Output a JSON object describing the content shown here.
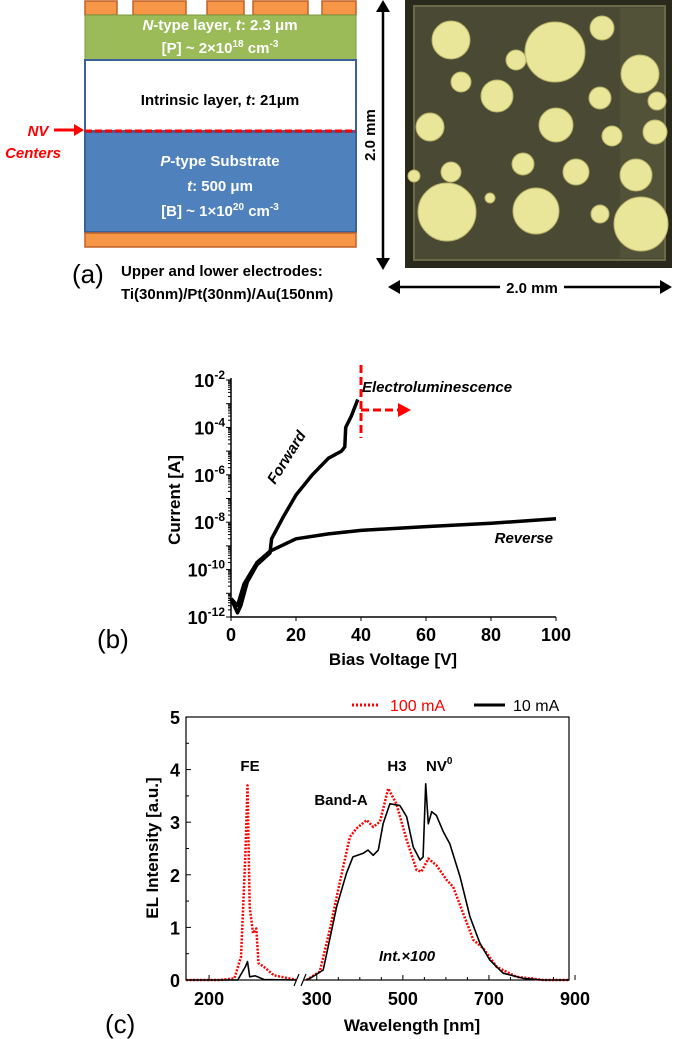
{
  "panel_a": {
    "label": "(a)",
    "n_layer": {
      "line1_italic": "N",
      "line1": "-type layer, ",
      "line1_t": "t",
      "line1_rest": ": 2.3 μm",
      "line2": "[P] ~ 2×10",
      "line2_sup": "18",
      "line2_unit": " cm",
      "line2_unit_sup": "-3"
    },
    "intrinsic_layer": {
      "text": "Intrinsic layer, ",
      "t": "t",
      "rest": ": 21μm"
    },
    "nv_label": [
      "NV",
      "Centers"
    ],
    "p_substrate": {
      "line1_italic": "P",
      "line1": "-type Substrate",
      "line2_t": "t",
      "line2": ": 500 μm",
      "line3": "[B] ~ 1×10",
      "line3_sup": "20",
      "line3_unit": " cm",
      "line3_unit_sup": "-3"
    },
    "electrodes_caption": [
      "Upper and lower electrodes:",
      "Ti(30nm)/Pt(30nm)/Au(150nm)"
    ],
    "photo_height_label": "2.0 mm",
    "photo_width_label": "2.0 mm",
    "colors": {
      "electrode": "#f79646",
      "n_layer": "#9bbb59",
      "p_substrate": "#4f81bd",
      "nv": "#ff0000"
    }
  },
  "chart_data": [
    {
      "id": "b",
      "type": "line",
      "panel_label": "(b)",
      "xlabel": "Bias Voltage [V]",
      "ylabel": "Current [A]",
      "xlim": [
        0,
        100
      ],
      "ylim": [
        1e-12,
        0.01
      ],
      "yscale": "log",
      "xticks": [
        "0",
        "20",
        "40",
        "60",
        "80",
        "100"
      ],
      "yticks": [
        {
          "base": "10",
          "exp": "-2"
        },
        {
          "base": "10",
          "exp": "-4"
        },
        {
          "base": "10",
          "exp": "-6"
        },
        {
          "base": "10",
          "exp": "-8"
        },
        {
          "base": "10",
          "exp": "-10"
        },
        {
          "base": "10",
          "exp": "-12"
        }
      ],
      "series": [
        {
          "name": "Forward",
          "color": "#000000",
          "x": [
            0,
            1,
            2,
            3,
            5,
            8,
            12,
            12.5,
            16,
            20,
            25,
            30,
            34,
            35,
            35.3,
            37,
            39
          ],
          "y": [
            6e-12,
            3e-12,
            1.5e-12,
            3e-12,
            3e-11,
            1.6e-10,
            5e-10,
            2e-09,
            1.6e-08,
            1.4e-07,
            1e-06,
            5e-06,
            1e-05,
            1.5e-05,
            0.0001,
            0.0003,
            0.0015
          ]
        },
        {
          "name": "Reverse",
          "color": "#000000",
          "x": [
            0,
            2,
            4,
            8,
            12,
            20,
            30,
            40,
            60,
            80,
            100
          ],
          "y": [
            6e-12,
            3e-12,
            2.5e-11,
            2e-10,
            6e-10,
            2e-09,
            3.2e-09,
            4.5e-09,
            6.5e-09,
            9e-09,
            1.4e-08
          ]
        }
      ],
      "annotations": {
        "threshold_x": 40,
        "electroluminescence": "Electroluminescence",
        "forward": "Forward",
        "reverse": "Reverse",
        "color": "#ff0000"
      }
    },
    {
      "id": "c",
      "type": "line",
      "panel_label": "(c)",
      "xlabel": "Wavelength [nm]",
      "ylabel": "EL Intensity [a.u.]",
      "ylim": [
        0,
        5
      ],
      "xaxis_broken": true,
      "xlim_left": [
        179,
        280
      ],
      "xlim_right": [
        268,
        886
      ],
      "xticks": [
        "200",
        "300",
        "500",
        "700",
        "900"
      ],
      "yticks": [
        "0",
        "1",
        "2",
        "3",
        "4",
        "5"
      ],
      "legend_position": "top-right",
      "series": [
        {
          "name": "100 mA",
          "color": "#ff0000",
          "style": "dotted",
          "left": {
            "x": [
              179,
              210,
              223,
              229,
              233,
              235,
              237,
              240,
              243,
              245,
              250,
              259,
              280
            ],
            "y": [
              0,
              0,
              0.03,
              0.44,
              2.34,
              3.7,
              1.39,
              0.89,
              0.98,
              0.32,
              0.25,
              0.09,
              0
            ]
          },
          "right": {
            "x": [
              276,
              307,
              330,
              353,
              377,
              392,
              416,
              431,
              447,
              466,
              485,
              509,
              532,
              543,
              559,
              578,
              602,
              617,
              640,
              664,
              687,
              718,
              764,
              826,
              886
            ],
            "y": [
              0,
              0.16,
              0.95,
              1.84,
              2.72,
              2.88,
              3.04,
              2.91,
              3.01,
              3.64,
              3.35,
              2.66,
              2.09,
              2.06,
              2.31,
              2.18,
              1.9,
              1.77,
              1.27,
              0.76,
              0.6,
              0.25,
              0.06,
              0,
              0
            ]
          }
        },
        {
          "name": "10 mA",
          "color": "#000000",
          "style": "solid",
          "left": {
            "x": [
              179,
              226,
              233,
              235,
              237,
              242,
              250,
              280
            ],
            "y": [
              0,
              0,
              0.25,
              0.35,
              0.06,
              0.08,
              0.01,
              0
            ]
          },
          "right": {
            "x": [
              276,
              284,
              315,
              346,
              369,
              384,
              408,
              419,
              431,
              443,
              454,
              470,
              493,
              509,
              524,
              540,
              547,
              553,
              559,
              567,
              578,
              594,
              609,
              633,
              656,
              679,
              702,
              733,
              780,
              826,
              886
            ],
            "y": [
              0,
              0.03,
              0.19,
              1.39,
              2.03,
              2.34,
              2.41,
              2.47,
              2.37,
              2.47,
              2.97,
              3.35,
              3.32,
              3.1,
              2.53,
              2.28,
              2.34,
              3.73,
              2.97,
              3.2,
              3.13,
              2.82,
              2.59,
              1.96,
              1.2,
              0.7,
              0.38,
              0.13,
              0.03,
              0,
              0
            ]
          }
        }
      ],
      "annotations": {
        "fe": "FE",
        "band_a": "Band-A",
        "h3": "H3",
        "nv0": "NV",
        "nv0_sup": "0",
        "int": "Int.×100"
      }
    }
  ]
}
